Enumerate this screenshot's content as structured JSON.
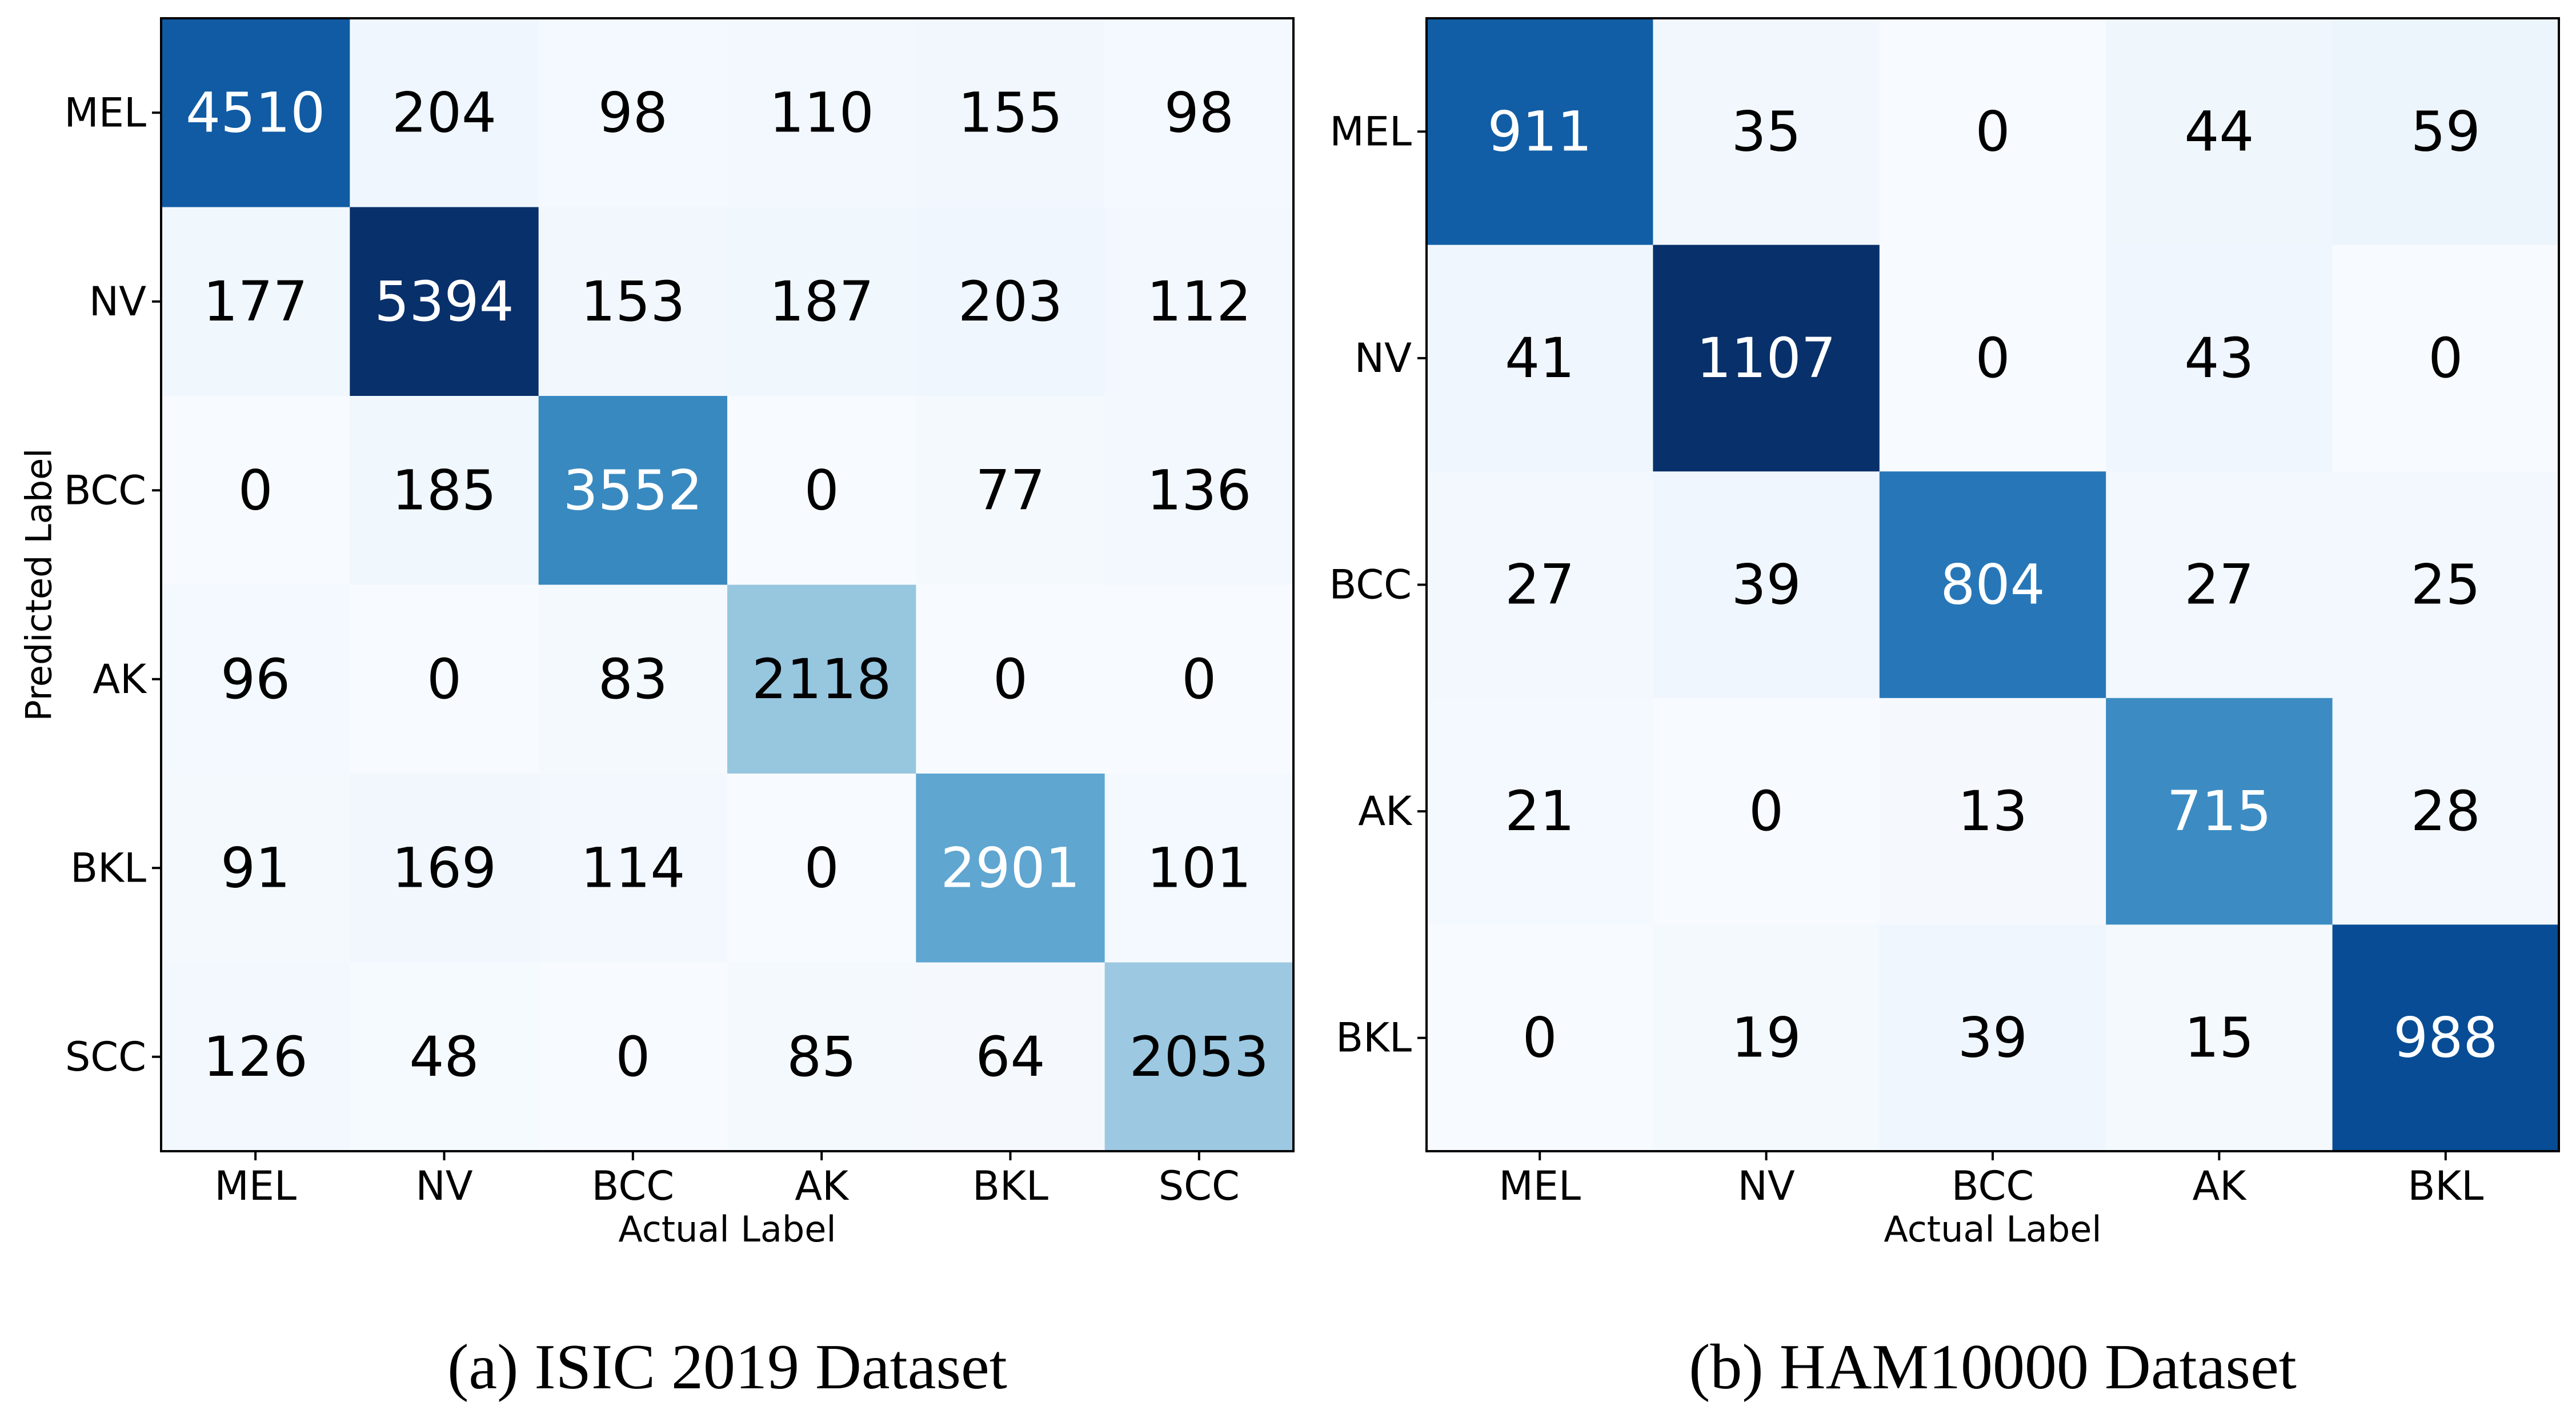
{
  "chart_data": [
    {
      "type": "heatmap",
      "caption": "(a) ISIC 2019 Dataset",
      "xlabel": "Actual Label",
      "ylabel": "Predicted Label",
      "x_categories": [
        "MEL",
        "NV",
        "BCC",
        "AK",
        "BKL",
        "SCC"
      ],
      "y_categories": [
        "MEL",
        "NV",
        "BCC",
        "AK",
        "BKL",
        "SCC"
      ],
      "values": [
        [
          4510,
          204,
          98,
          110,
          155,
          98
        ],
        [
          177,
          5394,
          153,
          187,
          203,
          112
        ],
        [
          0,
          185,
          3552,
          0,
          77,
          136
        ],
        [
          96,
          0,
          83,
          2118,
          0,
          0
        ],
        [
          91,
          169,
          114,
          0,
          2901,
          101
        ],
        [
          126,
          48,
          0,
          85,
          64,
          2053
        ]
      ],
      "colormap": "Blues",
      "grid": false
    },
    {
      "type": "heatmap",
      "caption": "(b) HAM10000 Dataset",
      "xlabel": "Actual Label",
      "ylabel": "",
      "x_categories": [
        "MEL",
        "NV",
        "BCC",
        "AK",
        "BKL"
      ],
      "y_categories": [
        "MEL",
        "NV",
        "BCC",
        "AK",
        "BKL"
      ],
      "values": [
        [
          911,
          35,
          0,
          44,
          59
        ],
        [
          41,
          1107,
          0,
          43,
          0
        ],
        [
          27,
          39,
          804,
          27,
          25
        ],
        [
          21,
          0,
          13,
          715,
          28
        ],
        [
          0,
          19,
          39,
          15,
          988
        ]
      ],
      "colormap": "Blues",
      "grid": false
    }
  ],
  "colors": {
    "blues_low": "#f7fbff",
    "blues_high": "#08306b",
    "text_dark": "#000000",
    "text_light": "#ffffff",
    "frame": "#000000"
  }
}
